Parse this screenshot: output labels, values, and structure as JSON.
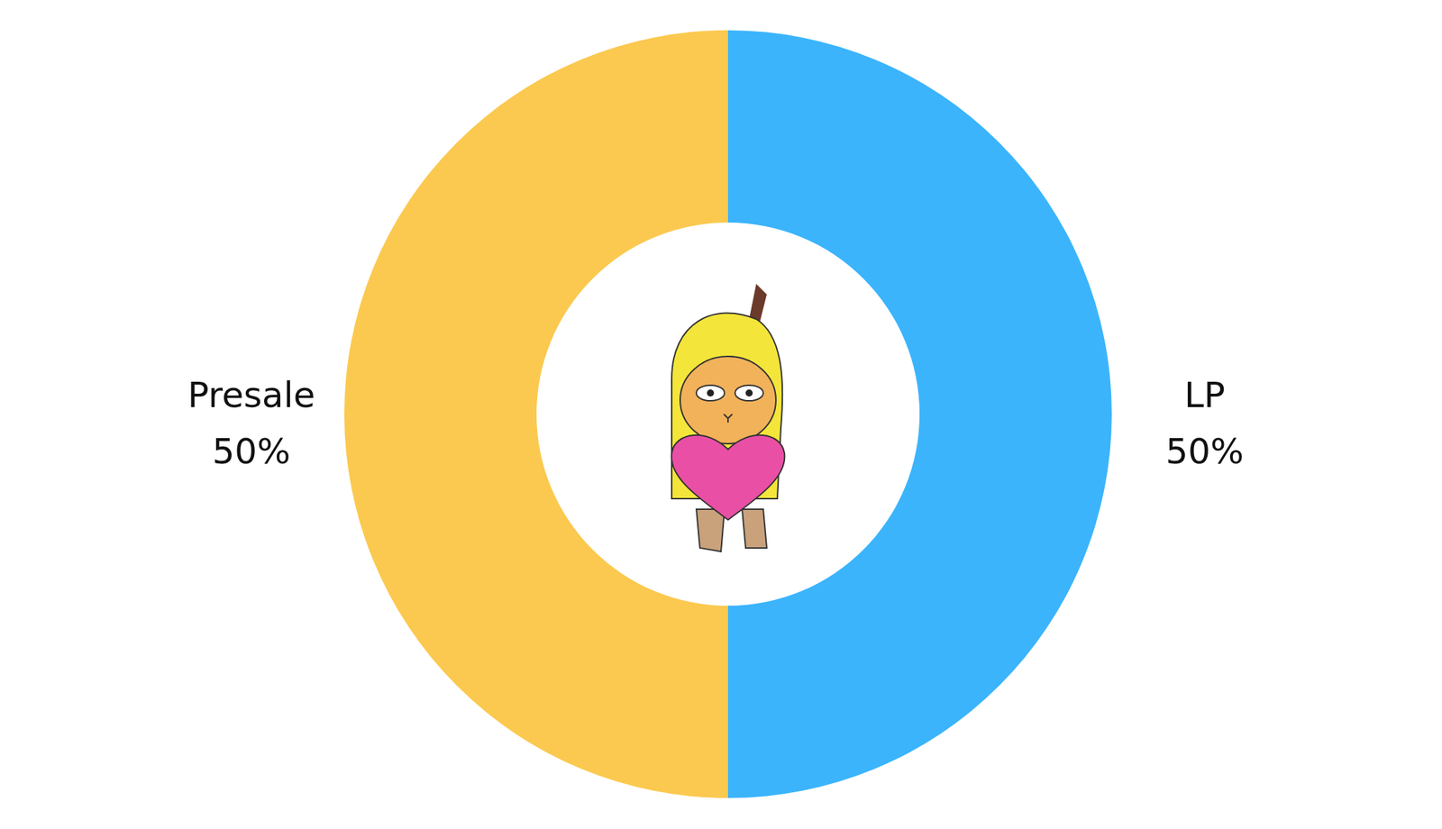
{
  "chart_data": {
    "type": "donut",
    "categories": [
      "Presale",
      "LP"
    ],
    "values": [
      50,
      50
    ],
    "value_labels": [
      "50%",
      "50%"
    ],
    "colors": [
      "#FBC94F",
      "#3BB4FC"
    ],
    "data_labels": true
  }
}
